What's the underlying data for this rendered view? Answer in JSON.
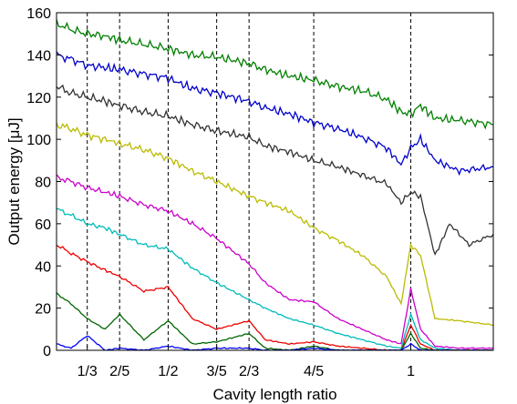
{
  "chart_data": {
    "type": "line",
    "xlabel": "Cavity length ratio",
    "ylabel": "Output energy [μJ]",
    "xlim": [
      0.27,
      1.17
    ],
    "ylim": [
      0,
      160
    ],
    "y_ticks": [
      0,
      20,
      40,
      60,
      80,
      100,
      120,
      140,
      160
    ],
    "x_ticks": [
      {
        "value": 0.3333,
        "label": "1/3"
      },
      {
        "value": 0.4,
        "label": "2/5"
      },
      {
        "value": 0.5,
        "label": "1/2"
      },
      {
        "value": 0.6,
        "label": "3/5"
      },
      {
        "value": 0.6667,
        "label": "2/3"
      },
      {
        "value": 0.8,
        "label": "4/5"
      },
      {
        "value": 1.0,
        "label": "1"
      }
    ],
    "grid": "vertical dashed lines at x ticks",
    "series": [
      {
        "color": "#008000",
        "x": [
          0.27,
          0.3,
          0.3333,
          0.37,
          0.4,
          0.45,
          0.5,
          0.55,
          0.6,
          0.6667,
          0.7,
          0.75,
          0.8,
          0.85,
          0.9,
          0.95,
          0.98,
          1.0,
          1.02,
          1.05,
          1.1,
          1.17
        ],
        "y": [
          155,
          152,
          150,
          149,
          147,
          145,
          143,
          140,
          139,
          136,
          133,
          130,
          128,
          125,
          123,
          119,
          113,
          112,
          116,
          110,
          109,
          107
        ]
      },
      {
        "color": "#0000cc",
        "x": [
          0.27,
          0.3,
          0.3333,
          0.37,
          0.4,
          0.45,
          0.5,
          0.55,
          0.6,
          0.6667,
          0.7,
          0.75,
          0.8,
          0.85,
          0.9,
          0.95,
          0.98,
          1.0,
          1.02,
          1.05,
          1.1,
          1.17
        ],
        "y": [
          140,
          138,
          135,
          134,
          133,
          131,
          129,
          124,
          122,
          118,
          115,
          112,
          108,
          105,
          101,
          96,
          88,
          96,
          100,
          90,
          85,
          87
        ]
      },
      {
        "color": "#333333",
        "x": [
          0.27,
          0.3,
          0.3333,
          0.37,
          0.4,
          0.45,
          0.5,
          0.55,
          0.6,
          0.6667,
          0.7,
          0.75,
          0.8,
          0.85,
          0.9,
          0.95,
          0.98,
          1.0,
          1.02,
          1.05,
          1.08,
          1.12,
          1.17
        ],
        "y": [
          125,
          122,
          120,
          118,
          116,
          113,
          111,
          107,
          104,
          101,
          97,
          94,
          90,
          87,
          83,
          79,
          70,
          75,
          73,
          45,
          60,
          50,
          55
        ]
      },
      {
        "color": "#bbbb00",
        "x": [
          0.27,
          0.3,
          0.3333,
          0.37,
          0.4,
          0.45,
          0.5,
          0.55,
          0.6,
          0.6667,
          0.7,
          0.75,
          0.8,
          0.85,
          0.9,
          0.95,
          0.98,
          1.0,
          1.02,
          1.05,
          1.1,
          1.17
        ],
        "y": [
          107,
          105,
          102,
          100,
          98,
          95,
          91,
          85,
          80,
          73,
          70,
          66,
          58,
          52,
          45,
          35,
          22,
          50,
          45,
          15,
          14,
          12
        ]
      },
      {
        "color": "#cc00cc",
        "x": [
          0.27,
          0.3,
          0.3333,
          0.37,
          0.4,
          0.45,
          0.5,
          0.55,
          0.6,
          0.6667,
          0.7,
          0.75,
          0.8,
          0.85,
          0.9,
          0.95,
          0.98,
          1.0,
          1.02,
          1.05,
          1.1,
          1.17
        ],
        "y": [
          82,
          80,
          77,
          75,
          73,
          69,
          66,
          60,
          53,
          41,
          32,
          24,
          23,
          15,
          10,
          5,
          3,
          29,
          10,
          2,
          1,
          1
        ]
      },
      {
        "color": "#00bbbb",
        "x": [
          0.27,
          0.3,
          0.3333,
          0.37,
          0.4,
          0.45,
          0.5,
          0.55,
          0.6,
          0.6667,
          0.7,
          0.75,
          0.8,
          0.85,
          0.9,
          0.95,
          0.98,
          1.0,
          1.02,
          1.05,
          1.1,
          1.17
        ],
        "y": [
          67,
          64,
          60,
          58,
          55,
          50,
          48,
          39,
          32,
          24,
          20,
          15,
          12,
          8,
          5,
          2,
          1,
          17,
          5,
          1,
          0,
          0
        ]
      },
      {
        "color": "#ee0000",
        "x": [
          0.27,
          0.3,
          0.3333,
          0.37,
          0.4,
          0.45,
          0.5,
          0.55,
          0.6,
          0.6667,
          0.7,
          0.75,
          0.8,
          0.85,
          0.9,
          0.95,
          0.98,
          1.0,
          1.02,
          1.05,
          1.1,
          1.17
        ],
        "y": [
          50,
          46,
          42,
          38,
          35,
          28,
          30,
          15,
          10,
          14,
          5,
          3,
          4,
          2,
          1,
          0,
          0,
          12,
          3,
          0,
          0,
          0
        ]
      },
      {
        "color": "#006600",
        "x": [
          0.27,
          0.3,
          0.3333,
          0.37,
          0.4,
          0.45,
          0.5,
          0.55,
          0.6,
          0.6667,
          0.7,
          0.75,
          0.8,
          0.85,
          0.9,
          0.95,
          0.98,
          1.0,
          1.02,
          1.05,
          1.1,
          1.17
        ],
        "y": [
          27,
          22,
          15,
          10,
          17,
          5,
          14,
          3,
          4,
          8,
          1,
          0,
          2,
          0,
          0,
          0,
          0,
          8,
          1,
          0,
          0,
          0
        ]
      },
      {
        "color": "#0000ff",
        "x": [
          0.27,
          0.3,
          0.3333,
          0.37,
          0.4,
          0.45,
          0.5,
          0.55,
          0.6,
          0.6667,
          0.7,
          0.75,
          0.8,
          0.85,
          0.9,
          0.95,
          0.98,
          1.0,
          1.02,
          1.05,
          1.1,
          1.17
        ],
        "y": [
          3,
          1,
          7,
          0,
          1,
          0,
          2,
          0,
          1,
          1,
          0,
          0,
          1,
          0,
          0,
          0,
          0,
          3,
          0,
          0,
          0,
          0
        ]
      }
    ]
  }
}
